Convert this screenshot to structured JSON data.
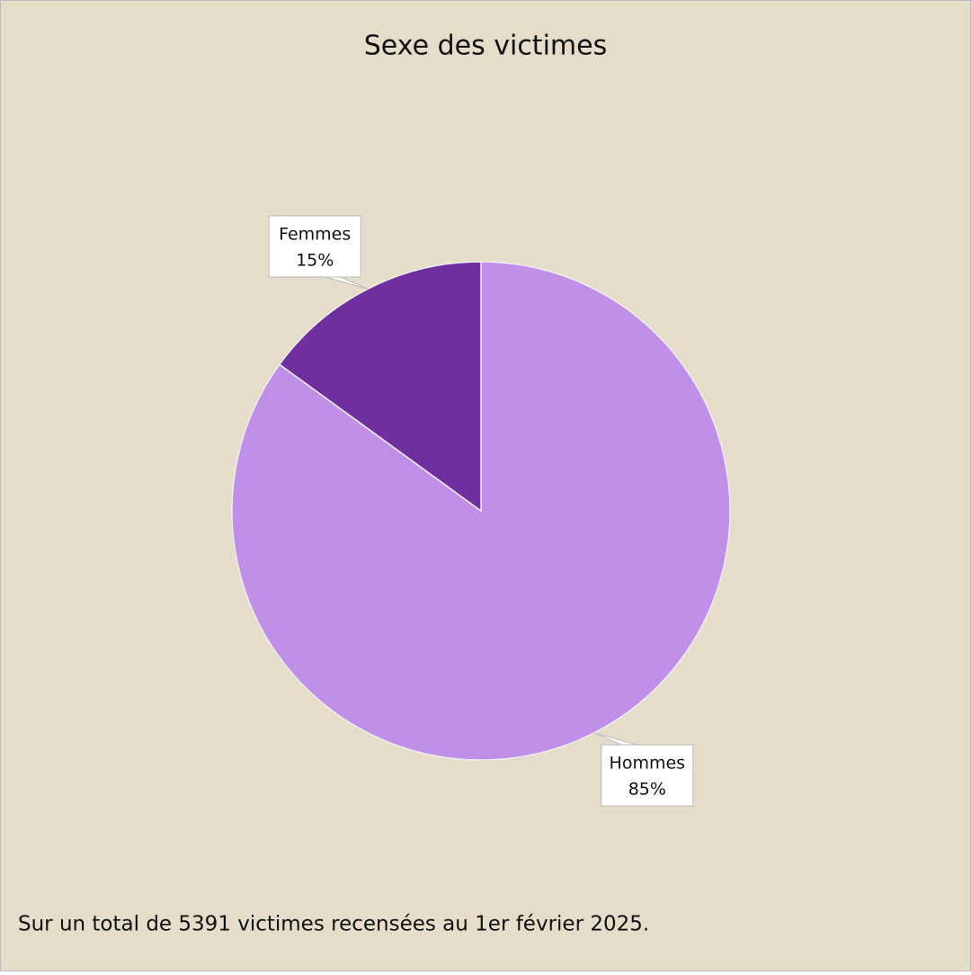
{
  "chart_data": {
    "type": "pie",
    "title": "Sexe des victimes",
    "categories": [
      "Hommes",
      "Femmes"
    ],
    "values": [
      85,
      15
    ],
    "value_labels": [
      "85%",
      "15%"
    ],
    "colors": [
      "#c090e8",
      "#6f2f9f"
    ],
    "note": "Sur un total de 5391 victimes recensées au 1er février 2025."
  }
}
